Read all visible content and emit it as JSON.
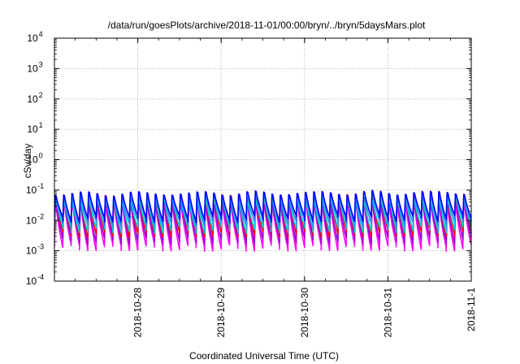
{
  "chart_data": {
    "type": "line",
    "title": "/data/run/goesPlots/archive/2018-11-01/00:00/bryn/../bryn/5daysMars.plot",
    "xlabel": "Coordinated Universal Time (UTC)",
    "ylabel": "cSv/day",
    "yscale": "log",
    "grid": true,
    "xlim": [
      "2018-10-27T00:00",
      "2018-11-01T00:00"
    ],
    "ylim": [
      0.0001,
      10000
    ],
    "x_ticks": [
      "2018-10-28",
      "2018-10-29",
      "2018-10-30",
      "2018-10-31",
      "2018-11-1"
    ],
    "y_ticks": [
      {
        "base": "10",
        "exp": "-4",
        "value": 0.0001
      },
      {
        "base": "10",
        "exp": "-3",
        "value": 0.001
      },
      {
        "base": "10",
        "exp": "-2",
        "value": 0.01
      },
      {
        "base": "10",
        "exp": "-1",
        "value": 0.1
      },
      {
        "base": "10",
        "exp": "0",
        "value": 1
      },
      {
        "base": "10",
        "exp": "1",
        "value": 10
      },
      {
        "base": "10",
        "exp": "2",
        "value": 100
      },
      {
        "base": "10",
        "exp": "3",
        "value": 1000
      },
      {
        "base": "10",
        "exp": "4",
        "value": 10000
      }
    ],
    "cycles_per_day": 10,
    "series": [
      {
        "color": "#ff00ff",
        "peak": 0.06,
        "trough": 0.0013,
        "trend": 1.0
      },
      {
        "color": "#9400d3",
        "peak": 0.07,
        "trough": 0.0022,
        "trend": 1.05
      },
      {
        "color": "#ff0000",
        "peak": 0.1,
        "trough": 0.0035,
        "trend": 1.1
      },
      {
        "color": "#00ced1",
        "peak": 0.075,
        "trough": 0.005,
        "trend": 1.05
      },
      {
        "color": "#1e90ff",
        "peak": 0.09,
        "trough": 0.008,
        "trend": 1.08
      },
      {
        "color": "#0000ff",
        "peak": 0.11,
        "trough": 0.011,
        "trend": 1.12
      }
    ]
  }
}
